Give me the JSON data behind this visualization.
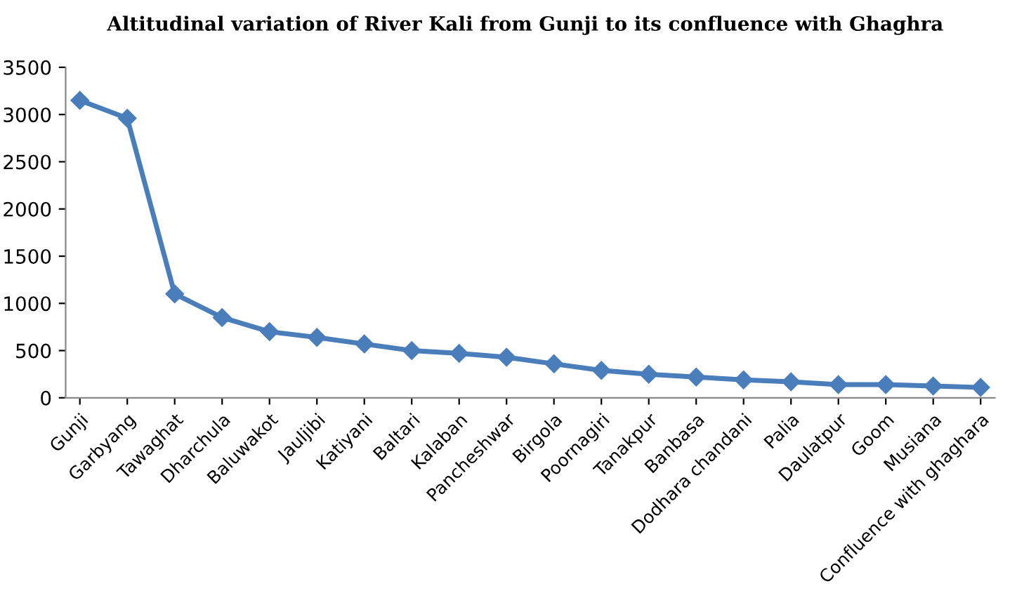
{
  "chart_data": {
    "type": "line",
    "title": "Altitudinal variation of River Kali from Gunji to its confluence with Ghaghra",
    "categories": [
      "Gunji",
      "Garbyang",
      "Tawaghat",
      "Dharchula",
      "Baluwakot",
      "Jauljibi",
      "Katiyani",
      "Baltari",
      "Kalaban",
      "Pancheshwar",
      "Birgola",
      "Poornagiri",
      "Tanakpur",
      "Banbasa",
      "Dodhara chandani",
      "Palia",
      "Daulatpur",
      "Goom",
      "Musiana",
      "Confluence with ghaghara"
    ],
    "series": [
      {
        "color": "#4a7ebb",
        "values": [
          3150,
          2960,
          1100,
          850,
          700,
          640,
          570,
          500,
          470,
          430,
          360,
          290,
          250,
          220,
          190,
          170,
          140,
          140,
          125,
          110
        ]
      }
    ],
    "ylim": [
      0,
      3500
    ],
    "yticks": [
      0,
      500,
      1000,
      1500,
      2000,
      2500,
      3000,
      3500
    ],
    "marker": "diamond",
    "grid": false,
    "legend": false
  }
}
